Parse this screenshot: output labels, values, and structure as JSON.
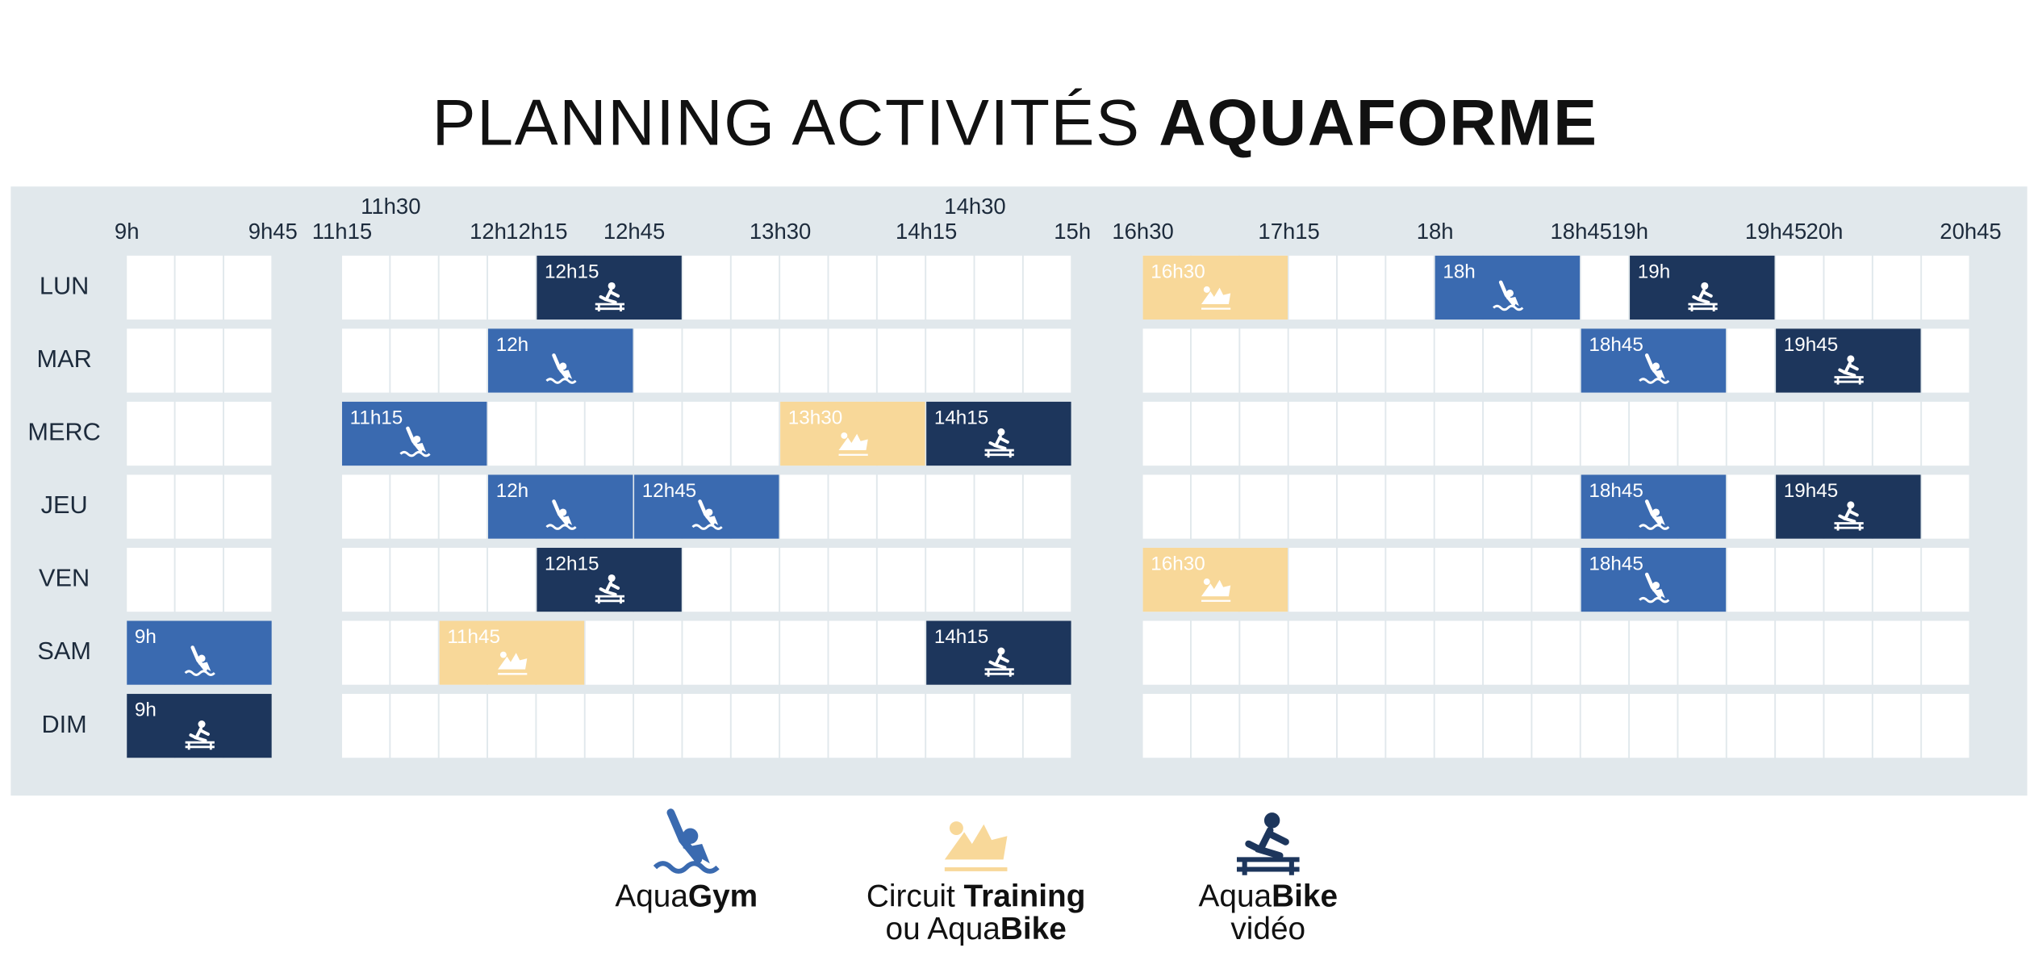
{
  "header": {
    "title_light": "PLANNING ACTIVITÉS",
    "title_bold": "AQUAFORME"
  },
  "time_blocks": [
    [
      "9h",
      "9h45"
    ],
    [
      "11h15",
      "11h30",
      "12h",
      "12h15",
      "12h45",
      "13h30",
      "14h15",
      "14h30",
      "15h"
    ],
    [
      "16h30",
      "17h15",
      "18h",
      "18h45",
      "19h",
      "19h45",
      "20h",
      "20h45"
    ]
  ],
  "days": [
    {
      "label": "LUN",
      "aquagym": [
        "18h"
      ],
      "circuit": [
        "16h30"
      ],
      "aquabike": [
        "12h15",
        "19h"
      ]
    },
    {
      "label": "MAR",
      "aquagym": [
        "12h",
        "18h45"
      ],
      "circuit": [],
      "aquabike": [
        "19h45"
      ]
    },
    {
      "label": "MERC",
      "aquagym": [
        "11h15"
      ],
      "circuit": [
        "13h30"
      ],
      "aquabike": [
        "14h15"
      ]
    },
    {
      "label": "JEU",
      "aquagym": [
        "12h",
        "12h45",
        "18h45"
      ],
      "circuit": [],
      "aquabike": [
        "19h45"
      ]
    },
    {
      "label": "VEN",
      "aquagym": [
        "18h45"
      ],
      "circuit": [
        "16h30"
      ],
      "aquabike": [
        "12h15"
      ]
    },
    {
      "label": "SAM",
      "aquagym": [
        "9h"
      ],
      "circuit": [
        "11h45"
      ],
      "aquabike": [
        "14h15"
      ]
    },
    {
      "label": "DIM",
      "aquagym": [],
      "circuit": [],
      "aquabike": [
        "9h"
      ]
    }
  ],
  "legend": {
    "aquagym": {
      "color": "#3a6ab0",
      "line1": [
        "Aqua",
        "Gym"
      ],
      "line2": []
    },
    "circuit": {
      "color": "#f8d899",
      "line1": [
        "Circuit ",
        "Training"
      ],
      "line2": [
        "ou Aqua",
        "Bike"
      ]
    },
    "aquabike": {
      "color": "#1d365c",
      "line1": [
        "Aqua",
        "Bike"
      ],
      "line2": [
        "",
        "vidéo"
      ]
    }
  }
}
